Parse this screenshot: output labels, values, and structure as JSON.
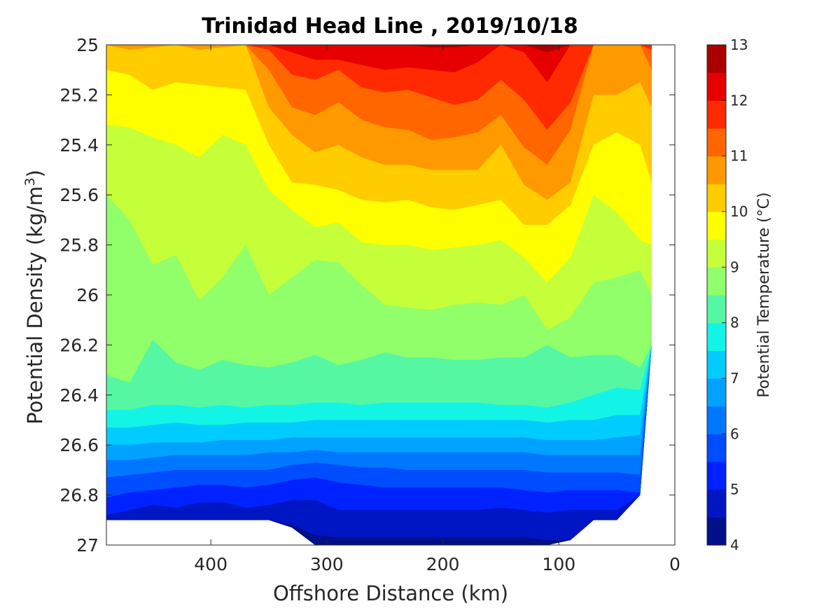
{
  "chart_data": {
    "type": "heatmap",
    "subtype": "filled-contour",
    "title": "Trinidad Head Line , 2019/10/18",
    "xlabel": "Offshore Distance (km)",
    "ylabel": "Potential Density (kg/m³)",
    "ylabel_parts": {
      "main": "Potential Density (kg/m",
      "sup": "3",
      "tail": ")"
    },
    "xlim": [
      490,
      0
    ],
    "x_reversed": true,
    "ylim": [
      25,
      27
    ],
    "y_reversed": true,
    "xticks": [
      400,
      300,
      200,
      100,
      0
    ],
    "xtick_labels": [
      "400",
      "300",
      "200",
      "100",
      "0"
    ],
    "yticks": [
      25,
      25.2,
      25.4,
      25.6,
      25.8,
      26,
      26.2,
      26.4,
      26.6,
      26.8,
      27
    ],
    "ytick_labels": [
      "25",
      "25.2",
      "25.4",
      "25.6",
      "25.8",
      "26",
      "26.2",
      "26.4",
      "26.6",
      "26.8",
      "27"
    ],
    "colorbar": {
      "label": "Potential Temperature (°C)",
      "range": [
        4,
        13
      ],
      "level_step": 0.5,
      "tick_values": [
        4,
        5,
        6,
        7,
        8,
        9,
        10,
        11,
        12,
        13
      ],
      "tick_labels": [
        "4",
        "5",
        "6",
        "7",
        "8",
        "9",
        "10",
        "11",
        "12",
        "13"
      ],
      "colors": [
        "#000f8a",
        "#0015c4",
        "#0022ff",
        "#004cff",
        "#0077ff",
        "#00a2ff",
        "#00ccff",
        "#12f5e6",
        "#55f7a3",
        "#90ff6a",
        "#c5ff3a",
        "#ffff00",
        "#ffcc00",
        "#ff9900",
        "#ff6600",
        "#ff2a00",
        "#e60000",
        "#aa0000"
      ]
    },
    "stations_x": [
      490,
      470,
      450,
      430,
      410,
      390,
      370,
      350,
      330,
      310,
      290,
      270,
      250,
      230,
      210,
      190,
      170,
      150,
      130,
      110,
      90,
      70,
      50,
      30,
      20
    ],
    "data_bottom_density": [
      26.9,
      26.9,
      26.9,
      26.9,
      26.9,
      26.9,
      26.9,
      26.9,
      26.93,
      27.0,
      27.0,
      27.0,
      27.0,
      27.0,
      27.0,
      27.0,
      27.0,
      27.0,
      27.0,
      27.0,
      26.98,
      26.9,
      26.9,
      26.8,
      26.2
    ],
    "isotherms": [
      {
        "t": 12.5,
        "y": [
          25,
          25,
          25,
          25,
          25,
          25,
          25,
          25,
          25,
          25,
          25,
          25,
          25,
          25,
          25.01,
          25.01,
          25,
          25,
          25,
          25.03,
          25,
          25,
          25,
          25,
          25
        ]
      },
      {
        "t": 12.0,
        "y": [
          25,
          25,
          25,
          25,
          25,
          25,
          25,
          25,
          25.03,
          25.06,
          25.06,
          25.08,
          25.1,
          25.09,
          25.1,
          25.11,
          25.07,
          25.0,
          25.03,
          25.15,
          25.0,
          25,
          25,
          25,
          25
        ]
      },
      {
        "t": 11.5,
        "y": [
          25,
          25,
          25,
          25,
          25,
          25,
          25,
          25.02,
          25.12,
          25.14,
          25.1,
          25.17,
          25.19,
          25.18,
          25.21,
          25.24,
          25.22,
          25.14,
          25.22,
          25.34,
          25.23,
          25,
          25,
          25,
          25.02
        ]
      },
      {
        "t": 11.0,
        "y": [
          25,
          25,
          25,
          25,
          25,
          25,
          25,
          25.1,
          25.25,
          25.28,
          25.23,
          25.3,
          25.33,
          25.34,
          25.38,
          25.37,
          25.35,
          25.28,
          25.41,
          25.48,
          25.34,
          25,
          25,
          25.0,
          25.1
        ]
      },
      {
        "t": 10.5,
        "y": [
          25,
          25.02,
          25.01,
          25.0,
          25.02,
          25.01,
          25.0,
          25.25,
          25.36,
          25.43,
          25.4,
          25.45,
          25.48,
          25.48,
          25.5,
          25.5,
          25.5,
          25.4,
          25.56,
          25.62,
          25.55,
          25.2,
          25.2,
          25.15,
          25.25
        ]
      },
      {
        "t": 10.0,
        "y": [
          25.1,
          25.12,
          25.18,
          25.15,
          25.16,
          25.17,
          25.18,
          25.4,
          25.55,
          25.56,
          25.58,
          25.62,
          25.63,
          25.62,
          25.65,
          25.66,
          25.64,
          25.62,
          25.72,
          25.72,
          25.64,
          25.4,
          25.35,
          25.4,
          25.55
        ]
      },
      {
        "t": 9.5,
        "y": [
          25.32,
          25.33,
          25.37,
          25.4,
          25.45,
          25.36,
          25.4,
          25.58,
          25.66,
          25.73,
          25.71,
          25.79,
          25.8,
          25.8,
          25.82,
          25.81,
          25.8,
          25.78,
          25.85,
          25.95,
          25.85,
          25.6,
          25.67,
          25.78,
          25.8
        ]
      },
      {
        "t": 9.0,
        "y": [
          25.6,
          25.7,
          25.88,
          25.84,
          26.02,
          25.93,
          25.8,
          26.0,
          25.93,
          25.86,
          25.87,
          25.96,
          26.04,
          26.05,
          26.06,
          26.04,
          26.03,
          26.04,
          26.0,
          26.14,
          26.09,
          25.95,
          25.93,
          25.9,
          26.0
        ]
      },
      {
        "t": 8.5,
        "y": [
          26.32,
          26.35,
          26.18,
          26.27,
          26.3,
          26.26,
          26.28,
          26.29,
          26.27,
          26.24,
          26.28,
          26.26,
          26.23,
          26.25,
          26.25,
          26.26,
          26.26,
          26.25,
          26.25,
          26.2,
          26.25,
          26.24,
          26.24,
          26.29,
          26.2
        ]
      },
      {
        "t": 8.0,
        "y": [
          26.46,
          26.46,
          26.44,
          26.44,
          26.45,
          26.44,
          26.45,
          26.44,
          26.44,
          26.43,
          26.43,
          26.44,
          26.43,
          26.43,
          26.43,
          26.43,
          26.43,
          26.44,
          26.44,
          26.45,
          26.43,
          26.4,
          26.37,
          26.38,
          26.4
        ]
      },
      {
        "t": 7.5,
        "y": [
          26.53,
          26.53,
          26.52,
          26.51,
          26.52,
          26.52,
          26.51,
          26.51,
          26.51,
          26.5,
          26.5,
          26.5,
          26.5,
          26.5,
          26.5,
          26.5,
          26.5,
          26.5,
          26.5,
          26.51,
          26.5,
          26.5,
          26.48,
          26.48,
          26.5
        ]
      },
      {
        "t": 7.0,
        "y": [
          26.6,
          26.6,
          26.59,
          26.59,
          26.59,
          26.58,
          26.58,
          26.58,
          26.57,
          26.57,
          26.57,
          26.57,
          26.57,
          26.57,
          26.57,
          26.57,
          26.57,
          26.57,
          26.57,
          26.58,
          26.58,
          26.58,
          26.57,
          26.56,
          26.57
        ]
      },
      {
        "t": 6.5,
        "y": [
          26.66,
          26.66,
          26.65,
          26.64,
          26.64,
          26.64,
          26.64,
          26.63,
          26.63,
          26.62,
          26.63,
          26.63,
          26.63,
          26.63,
          26.63,
          26.63,
          26.63,
          26.63,
          26.63,
          26.64,
          26.64,
          26.64,
          26.64,
          26.64,
          26.64
        ]
      },
      {
        "t": 6.0,
        "y": [
          26.73,
          26.72,
          26.71,
          26.7,
          26.7,
          26.7,
          26.7,
          26.7,
          26.68,
          26.67,
          26.68,
          26.69,
          26.69,
          26.7,
          26.7,
          26.7,
          26.7,
          26.7,
          26.7,
          26.71,
          26.71,
          26.71,
          26.71,
          26.72,
          26.72
        ]
      },
      {
        "t": 5.5,
        "y": [
          26.81,
          26.79,
          26.78,
          26.77,
          26.76,
          26.76,
          26.77,
          26.76,
          26.74,
          26.73,
          26.75,
          26.76,
          26.77,
          26.77,
          26.77,
          26.77,
          26.77,
          26.77,
          26.78,
          26.79,
          26.78,
          26.78,
          26.78,
          26.79,
          26.8
        ]
      },
      {
        "t": 5.0,
        "y": [
          26.88,
          26.86,
          26.84,
          26.85,
          26.83,
          26.83,
          26.85,
          26.84,
          26.82,
          26.82,
          26.86,
          26.86,
          26.86,
          26.86,
          26.86,
          26.86,
          26.86,
          26.85,
          26.86,
          26.87,
          26.86,
          26.86,
          26.86,
          26.86,
          26.86
        ]
      },
      {
        "t": 4.5,
        "y": [
          26.9,
          26.9,
          26.9,
          26.9,
          26.9,
          26.9,
          26.9,
          26.9,
          26.92,
          26.96,
          26.97,
          26.97,
          26.97,
          26.97,
          26.97,
          26.97,
          26.97,
          26.97,
          26.97,
          26.98,
          26.98,
          26.9,
          26.9,
          26.8,
          26.2
        ]
      }
    ]
  }
}
